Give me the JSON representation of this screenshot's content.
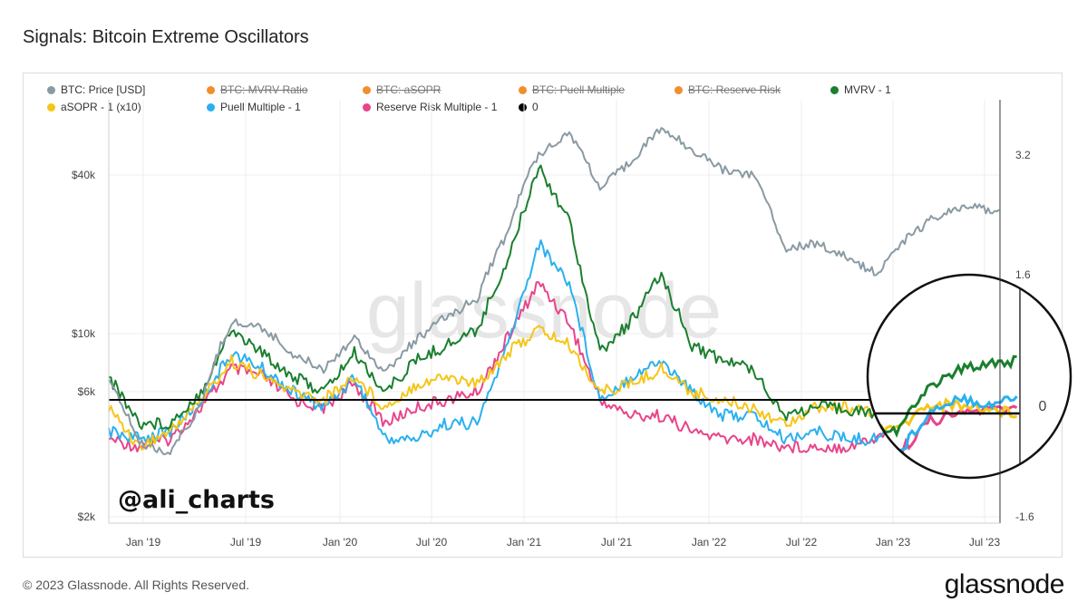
{
  "title": "Signals: Bitcoin Extreme Oscillators",
  "watermark": "glassnode",
  "handle": "@ali_charts",
  "footer": "© 2023 Glassnode. All Rights Reserved.",
  "brand": "glassnode",
  "legend": [
    {
      "label": "BTC: Price [USD]",
      "color": "#8a9aa3",
      "enabled": true
    },
    {
      "label": "BTC: MVRV Ratio",
      "color": "#f28e2b",
      "enabled": false
    },
    {
      "label": "BTC: aSOPR",
      "color": "#f28e2b",
      "enabled": false
    },
    {
      "label": "BTC: Puell Multiple",
      "color": "#f28e2b",
      "enabled": false
    },
    {
      "label": "BTC: Reserve Risk",
      "color": "#f28e2b",
      "enabled": false
    },
    {
      "label": "MVRV - 1",
      "color": "#1a7f2e",
      "enabled": true
    },
    {
      "label": "aSOPR - 1 (x10)",
      "color": "#f5c518",
      "enabled": true
    },
    {
      "label": "Puell Multiple - 1",
      "color": "#2ab0ef",
      "enabled": true
    },
    {
      "label": "Reserve Risk Multiple - 1",
      "color": "#e8458b",
      "enabled": true
    },
    {
      "label": "0",
      "color": "#000000",
      "enabled": true
    }
  ],
  "chart_data": {
    "type": "line",
    "x_ticks": [
      "Jan '19",
      "Jul '19",
      "Jan '20",
      "Jul '20",
      "Jan '21",
      "Jul '21",
      "Jan '22",
      "Jul '22",
      "Jan '23",
      "Jul '23"
    ],
    "y_left": {
      "scale": "log",
      "ticks": [
        "$2k",
        "$6k",
        "$10k",
        "$40k"
      ]
    },
    "y_right": {
      "scale": "linear",
      "ticks": [
        "-1.6",
        "1.6",
        "3.2"
      ]
    },
    "zoom_label": "0",
    "x_dates": [
      "2018-10",
      "2018-12",
      "2019-02",
      "2019-04",
      "2019-06",
      "2019-08",
      "2019-10",
      "2019-12",
      "2020-02",
      "2020-04",
      "2020-06",
      "2020-08",
      "2020-10",
      "2020-12",
      "2021-02",
      "2021-04",
      "2021-06",
      "2021-08",
      "2021-10",
      "2021-12",
      "2022-02",
      "2022-04",
      "2022-06",
      "2022-08",
      "2022-10",
      "2022-12",
      "2023-02",
      "2023-04",
      "2023-06",
      "2023-08"
    ],
    "series": [
      {
        "name": "BTC: Price [USD]",
        "axis": "left",
        "values": [
          6500,
          3800,
          3500,
          5200,
          11000,
          10500,
          8300,
          7300,
          9600,
          7000,
          9400,
          11500,
          13500,
          24000,
          48000,
          58000,
          35000,
          45000,
          60000,
          50000,
          42000,
          40000,
          21000,
          22000,
          19500,
          16800,
          23000,
          28000,
          30000,
          29500
        ]
      },
      {
        "name": "MVRV - 1",
        "axis": "right",
        "values": [
          0.3,
          -0.3,
          -0.3,
          0.1,
          0.9,
          0.6,
          0.3,
          0.1,
          0.6,
          0.1,
          0.5,
          0.7,
          0.9,
          1.8,
          3.0,
          2.3,
          0.6,
          1.0,
          1.6,
          0.7,
          0.5,
          0.4,
          -0.2,
          -0.1,
          -0.1,
          -0.2,
          0.3,
          0.5,
          0.6,
          0.6
        ]
      },
      {
        "name": "aSOPR - 1 (x10)",
        "axis": "right",
        "values": [
          -0.1,
          -0.6,
          -0.4,
          0.0,
          0.5,
          0.3,
          0.1,
          0.0,
          0.3,
          -0.1,
          0.2,
          0.3,
          0.2,
          0.6,
          0.9,
          0.7,
          0.1,
          0.2,
          0.4,
          0.1,
          0.0,
          -0.1,
          -0.3,
          -0.1,
          -0.1,
          -0.2,
          0.1,
          0.1,
          0.05,
          0.0
        ]
      },
      {
        "name": "Puell Multiple - 1",
        "axis": "right",
        "values": [
          -0.4,
          -0.5,
          -0.4,
          0.0,
          0.6,
          0.4,
          0.1,
          -0.1,
          0.3,
          -0.5,
          -0.5,
          -0.3,
          -0.3,
          0.7,
          2.0,
          1.5,
          0.0,
          0.3,
          0.5,
          0.1,
          -0.2,
          -0.2,
          -0.5,
          -0.4,
          -0.5,
          -0.5,
          0.0,
          0.2,
          0.1,
          0.2
        ]
      },
      {
        "name": "Reserve Risk Multiple - 1",
        "axis": "right",
        "values": [
          -0.5,
          -0.6,
          -0.5,
          -0.1,
          0.4,
          0.3,
          0.0,
          -0.1,
          0.2,
          -0.3,
          -0.1,
          0.0,
          0.1,
          0.8,
          1.5,
          1.0,
          0.0,
          -0.2,
          -0.2,
          -0.4,
          -0.5,
          -0.5,
          -0.6,
          -0.6,
          -0.6,
          -0.5,
          -0.1,
          0.0,
          0.05,
          0.05
        ]
      },
      {
        "name": "0",
        "axis": "right",
        "values": [
          0,
          0,
          0,
          0,
          0,
          0,
          0,
          0,
          0,
          0,
          0,
          0,
          0,
          0,
          0,
          0,
          0,
          0,
          0,
          0,
          0,
          0,
          0,
          0,
          0,
          0,
          0,
          0,
          0,
          0
        ]
      }
    ]
  }
}
